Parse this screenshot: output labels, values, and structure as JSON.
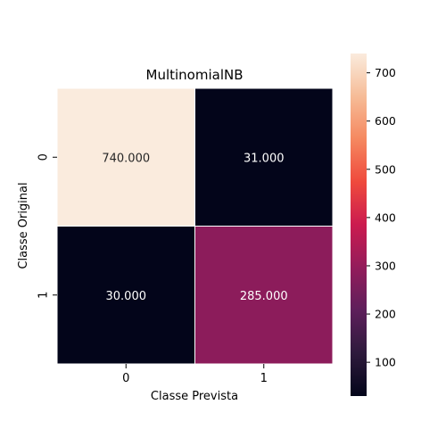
{
  "chart_data": {
    "type": "heatmap",
    "title": "MultinomialNB",
    "xlabel": "Classe Prevista",
    "ylabel": "Classe Original",
    "x_categories": [
      "0",
      "1"
    ],
    "y_categories": [
      "0",
      "1"
    ],
    "values": [
      [
        740,
        31
      ],
      [
        30,
        285
      ]
    ],
    "value_labels": [
      [
        "740.000",
        "31.000"
      ],
      [
        "30.000",
        "285.000"
      ]
    ],
    "colorbar": {
      "range": [
        30,
        740
      ],
      "ticks": [
        100,
        200,
        300,
        400,
        500,
        600,
        700
      ],
      "tick_labels": [
        "100",
        "200",
        "300",
        "400",
        "500",
        "600",
        "700"
      ],
      "colormap": "rocket"
    },
    "colors": {
      "low": "#03051a",
      "high": "#faebdd",
      "cell_border": "#ffffff",
      "text_on_dark": "#ffffff",
      "text_on_light": "#262626"
    }
  }
}
